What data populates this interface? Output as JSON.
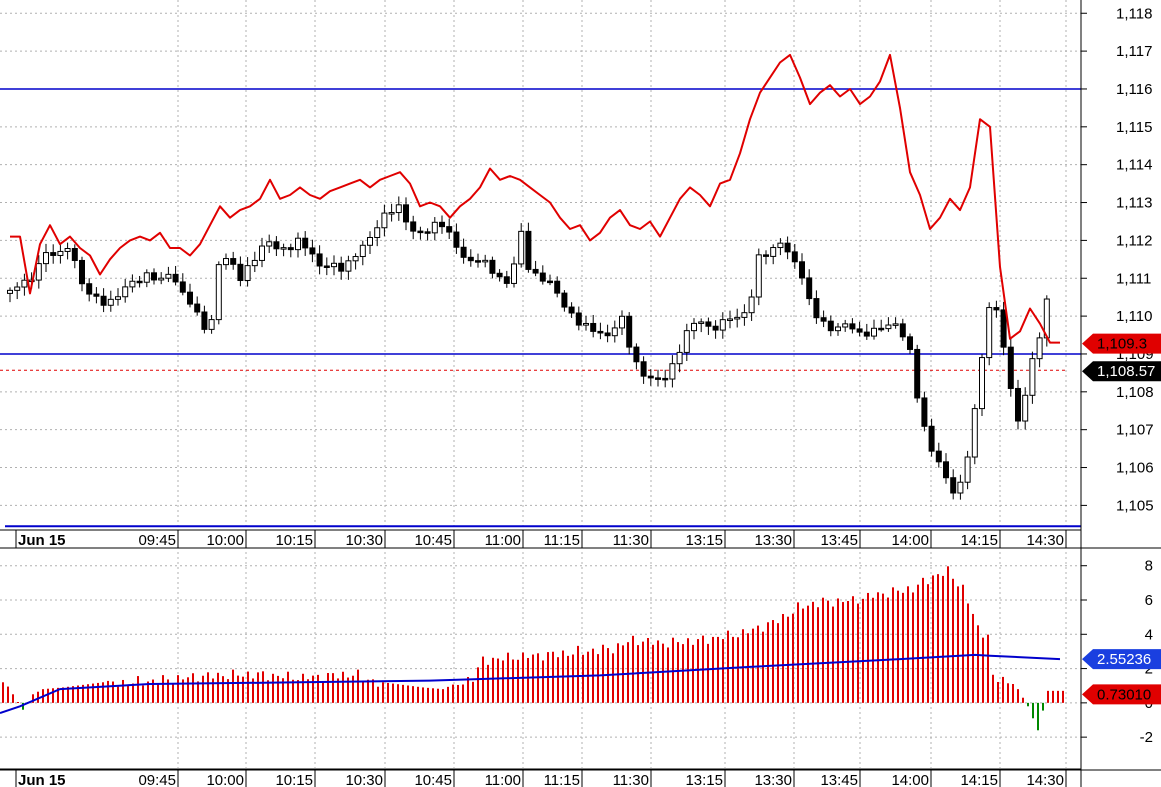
{
  "colors": {
    "price_line": "#e00000",
    "level_line": "#0000cc",
    "up_candle_fill": "#ffffff",
    "down_candle_fill": "#000000",
    "hist_positive": "#e00000",
    "hist_negative": "#008800",
    "signal_line": "#0000cc",
    "grid": "#b0b0b0",
    "price_flag": "#e00000",
    "last_flag": "#000000",
    "signal_flag": "#1a3fe0"
  },
  "chart_data": [
    {
      "type": "candlestick",
      "panel": "price",
      "grid": true,
      "ylim": [
        1104.35,
        1118.35
      ],
      "y_ticks": [
        "1,105",
        "1,106",
        "1,107",
        "1,108",
        "1,109",
        "1,110",
        "1,111",
        "1,112",
        "1,113",
        "1,114",
        "1,115",
        "1,116",
        "1,117",
        "1,118"
      ],
      "y_tick_values": [
        1105,
        1106,
        1107,
        1108,
        1109,
        1110,
        1111,
        1112,
        1113,
        1114,
        1115,
        1116,
        1117,
        1118
      ],
      "date_label": "Jun 15",
      "x_ticks": [
        "09:45",
        "10:00",
        "10:15",
        "10:30",
        "10:45",
        "11:00",
        "11:15",
        "11:30",
        "13:15",
        "13:30",
        "13:45",
        "14:00",
        "14:15",
        "14:30"
      ],
      "close_path": [
        [
          0,
          1110.6
        ],
        [
          10,
          1110.9
        ],
        [
          20,
          1110.8
        ],
        [
          30,
          1111.4
        ],
        [
          40,
          1111.6
        ],
        [
          50,
          1111.5
        ],
        [
          60,
          1111.8
        ],
        [
          70,
          1110.8
        ],
        [
          80,
          1110.5
        ],
        [
          90,
          1110.3
        ],
        [
          100,
          1110.3
        ],
        [
          110,
          1110.6
        ],
        [
          120,
          1110.9
        ],
        [
          130,
          1111.0
        ],
        [
          140,
          1111.2
        ],
        [
          150,
          1111.0
        ],
        [
          160,
          1111.3
        ],
        [
          170,
          1110.8
        ],
        [
          180,
          1110.5
        ],
        [
          190,
          1110.0
        ],
        [
          200,
          1109.6
        ],
        [
          210,
          1111.7
        ],
        [
          220,
          1111.5
        ],
        [
          230,
          1111.0
        ],
        [
          240,
          1111.3
        ],
        [
          250,
          1111.7
        ],
        [
          260,
          1111.9
        ],
        [
          270,
          1111.6
        ],
        [
          280,
          1111.7
        ],
        [
          290,
          1111.9
        ],
        [
          300,
          1111.6
        ],
        [
          310,
          1111.2
        ],
        [
          320,
          1111.3
        ],
        [
          330,
          1111.2
        ],
        [
          340,
          1111.4
        ],
        [
          350,
          1111.8
        ],
        [
          360,
          1112.1
        ],
        [
          370,
          1112.6
        ],
        [
          380,
          1112.9
        ],
        [
          390,
          1113.0
        ],
        [
          400,
          1112.4
        ],
        [
          410,
          1112.3
        ],
        [
          420,
          1112.4
        ],
        [
          430,
          1112.6
        ],
        [
          440,
          1112.2
        ],
        [
          450,
          1111.7
        ],
        [
          460,
          1111.4
        ],
        [
          470,
          1111.5
        ],
        [
          480,
          1111.2
        ],
        [
          490,
          1110.9
        ],
        [
          500,
          1110.7
        ],
        [
          510,
          1112.2
        ],
        [
          520,
          1111.0
        ],
        [
          530,
          1110.9
        ],
        [
          540,
          1110.8
        ],
        [
          550,
          1110.4
        ],
        [
          560,
          1110.0
        ],
        [
          570,
          1109.8
        ],
        [
          580,
          1109.7
        ],
        [
          590,
          1109.6
        ],
        [
          600,
          1109.5
        ],
        [
          610,
          1110.2
        ],
        [
          620,
          1109.3
        ],
        [
          630,
          1108.6
        ],
        [
          640,
          1108.5
        ],
        [
          650,
          1108.4
        ],
        [
          660,
          1108.6
        ],
        [
          670,
          1109.2
        ],
        [
          680,
          1109.8
        ],
        [
          690,
          1109.9
        ],
        [
          700,
          1109.6
        ],
        [
          710,
          1109.7
        ],
        [
          720,
          1109.9
        ],
        [
          730,
          1109.8
        ],
        [
          740,
          1110.2
        ],
        [
          750,
          1111.6
        ],
        [
          760,
          1111.5
        ],
        [
          770,
          1111.9
        ],
        [
          780,
          1111.5
        ],
        [
          790,
          1111.2
        ],
        [
          800,
          1110.3
        ],
        [
          810,
          1109.9
        ],
        [
          820,
          1109.7
        ],
        [
          830,
          1109.8
        ],
        [
          840,
          1109.9
        ],
        [
          850,
          1109.6
        ],
        [
          860,
          1109.7
        ],
        [
          870,
          1109.8
        ],
        [
          880,
          1109.9
        ],
        [
          890,
          1109.8
        ],
        [
          900,
          1109.1
        ],
        [
          910,
          1107.5
        ],
        [
          920,
          1106.5
        ],
        [
          930,
          1106.1
        ],
        [
          940,
          1105.3
        ],
        [
          950,
          1105.4
        ],
        [
          960,
          1106.5
        ],
        [
          970,
          1108.4
        ],
        [
          980,
          1110.3
        ],
        [
          990,
          1109.8
        ],
        [
          1000,
          1108.0
        ],
        [
          1010,
          1107.0
        ],
        [
          1020,
          1108.6
        ],
        [
          1030,
          1109.5
        ],
        [
          1040,
          1110.8
        ]
      ],
      "overlay_price_line": [
        [
          0,
          1112.1
        ],
        [
          10,
          1112.1
        ],
        [
          20,
          1110.6
        ],
        [
          30,
          1111.9
        ],
        [
          40,
          1112.4
        ],
        [
          50,
          1111.9
        ],
        [
          60,
          1112.1
        ],
        [
          70,
          1111.8
        ],
        [
          80,
          1111.6
        ],
        [
          90,
          1111.1
        ],
        [
          100,
          1111.5
        ],
        [
          110,
          1111.8
        ],
        [
          120,
          1112.0
        ],
        [
          130,
          1112.1
        ],
        [
          140,
          1112.0
        ],
        [
          150,
          1112.2
        ],
        [
          160,
          1111.8
        ],
        [
          170,
          1111.8
        ],
        [
          180,
          1111.6
        ],
        [
          190,
          1111.9
        ],
        [
          200,
          1112.4
        ],
        [
          210,
          1112.9
        ],
        [
          220,
          1112.6
        ],
        [
          230,
          1112.8
        ],
        [
          240,
          1112.9
        ],
        [
          250,
          1113.1
        ],
        [
          260,
          1113.6
        ],
        [
          270,
          1113.1
        ],
        [
          280,
          1113.2
        ],
        [
          290,
          1113.4
        ],
        [
          300,
          1113.2
        ],
        [
          310,
          1113.1
        ],
        [
          320,
          1113.3
        ],
        [
          330,
          1113.4
        ],
        [
          340,
          1113.5
        ],
        [
          350,
          1113.6
        ],
        [
          360,
          1113.4
        ],
        [
          370,
          1113.6
        ],
        [
          380,
          1113.7
        ],
        [
          390,
          1113.8
        ],
        [
          400,
          1113.5
        ],
        [
          410,
          1112.9
        ],
        [
          420,
          1113.0
        ],
        [
          430,
          1112.9
        ],
        [
          440,
          1112.6
        ],
        [
          450,
          1112.9
        ],
        [
          460,
          1113.1
        ],
        [
          470,
          1113.4
        ],
        [
          480,
          1113.9
        ],
        [
          490,
          1113.6
        ],
        [
          500,
          1113.7
        ],
        [
          510,
          1113.6
        ],
        [
          520,
          1113.4
        ],
        [
          530,
          1113.2
        ],
        [
          540,
          1113.0
        ],
        [
          550,
          1112.6
        ],
        [
          560,
          1112.3
        ],
        [
          570,
          1112.4
        ],
        [
          580,
          1112.0
        ],
        [
          590,
          1112.2
        ],
        [
          600,
          1112.6
        ],
        [
          610,
          1112.8
        ],
        [
          620,
          1112.4
        ],
        [
          630,
          1112.3
        ],
        [
          640,
          1112.5
        ],
        [
          650,
          1112.1
        ],
        [
          660,
          1112.6
        ],
        [
          670,
          1113.1
        ],
        [
          680,
          1113.4
        ],
        [
          690,
          1113.2
        ],
        [
          700,
          1112.9
        ],
        [
          710,
          1113.5
        ],
        [
          720,
          1113.6
        ],
        [
          730,
          1114.3
        ],
        [
          740,
          1115.2
        ],
        [
          750,
          1115.9
        ],
        [
          760,
          1116.3
        ],
        [
          770,
          1116.7
        ],
        [
          780,
          1116.9
        ],
        [
          790,
          1116.3
        ],
        [
          800,
          1115.6
        ],
        [
          810,
          1115.9
        ],
        [
          820,
          1116.1
        ],
        [
          830,
          1115.8
        ],
        [
          840,
          1116.0
        ],
        [
          850,
          1115.6
        ],
        [
          860,
          1115.8
        ],
        [
          870,
          1116.2
        ],
        [
          880,
          1116.9
        ],
        [
          890,
          1115.5
        ],
        [
          900,
          1113.8
        ],
        [
          910,
          1113.2
        ],
        [
          920,
          1112.3
        ],
        [
          930,
          1112.6
        ],
        [
          940,
          1113.1
        ],
        [
          950,
          1112.8
        ],
        [
          960,
          1113.4
        ],
        [
          970,
          1115.2
        ],
        [
          980,
          1115.0
        ],
        [
          990,
          1111.3
        ],
        [
          1000,
          1109.4
        ],
        [
          1010,
          1109.6
        ],
        [
          1020,
          1110.2
        ],
        [
          1030,
          1109.8
        ],
        [
          1040,
          1109.3
        ],
        [
          1050,
          1109.3
        ]
      ],
      "horizontal_levels": [
        1116.0,
        1109.0,
        1104.45
      ],
      "reference_dotted_level": 1108.57,
      "price_flag": "1,109.3",
      "last_flag": "1,108.57"
    },
    {
      "type": "bar",
      "panel": "indicator",
      "grid": true,
      "ylim": [
        -3.8,
        8.8
      ],
      "y_ticks": [
        "8",
        "6",
        "4",
        "2",
        "0",
        "-2"
      ],
      "y_tick_values": [
        8,
        6,
        4,
        2,
        0,
        -2
      ],
      "date_label": "Jun 15",
      "x_ticks": [
        "09:45",
        "10:00",
        "10:15",
        "10:30",
        "10:45",
        "11:00",
        "11:15",
        "11:30",
        "13:15",
        "13:30",
        "13:45",
        "14:00",
        "14:15",
        "14:30"
      ],
      "histogram_keys": [
        [
          0,
          1.4
        ],
        [
          20,
          -0.4
        ],
        [
          30,
          0.5
        ],
        [
          40,
          0.8
        ],
        [
          60,
          0.9
        ],
        [
          100,
          1.2
        ],
        [
          150,
          1.4
        ],
        [
          200,
          1.7
        ],
        [
          250,
          1.8
        ],
        [
          300,
          1.6
        ],
        [
          350,
          1.8
        ],
        [
          380,
          1.2
        ],
        [
          420,
          0.9
        ],
        [
          440,
          0.8
        ],
        [
          470,
          1.6
        ],
        [
          480,
          2.6
        ],
        [
          510,
          2.8
        ],
        [
          560,
          3.0
        ],
        [
          610,
          3.3
        ],
        [
          630,
          3.8
        ],
        [
          660,
          3.6
        ],
        [
          700,
          3.8
        ],
        [
          740,
          4.2
        ],
        [
          770,
          4.8
        ],
        [
          800,
          5.8
        ],
        [
          820,
          6.0
        ],
        [
          850,
          6.1
        ],
        [
          870,
          6.4
        ],
        [
          890,
          6.6
        ],
        [
          910,
          6.8
        ],
        [
          930,
          7.5
        ],
        [
          945,
          7.8
        ],
        [
          960,
          6.8
        ],
        [
          975,
          4.5
        ],
        [
          985,
          4.0
        ],
        [
          990,
          1.6
        ],
        [
          1005,
          1.4
        ],
        [
          1015,
          0.8
        ],
        [
          1025,
          -0.2
        ],
        [
          1035,
          -1.6
        ],
        [
          1045,
          0.7
        ],
        [
          1060,
          0.7
        ]
      ],
      "signal_line": [
        [
          0,
          -0.6
        ],
        [
          20,
          -0.2
        ],
        [
          60,
          0.8
        ],
        [
          150,
          1.1
        ],
        [
          300,
          1.2
        ],
        [
          430,
          1.3
        ],
        [
          600,
          1.6
        ],
        [
          750,
          2.1
        ],
        [
          900,
          2.55
        ],
        [
          975,
          2.8
        ],
        [
          990,
          2.75
        ],
        [
          1060,
          2.55
        ]
      ],
      "signal_flag": "2.55236",
      "value_flag": "0.73010"
    }
  ]
}
